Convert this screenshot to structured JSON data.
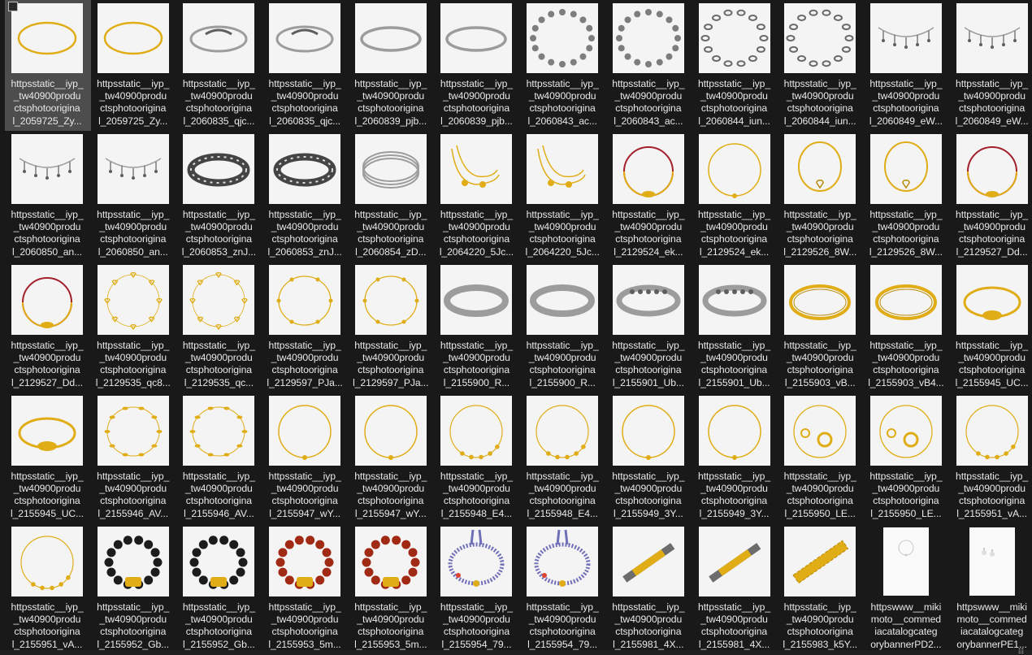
{
  "files": [
    {
      "caption": "httpsstatic__iyp_\n_tw40900produ\nctsphotoorigina\nl_2059725_Zy...",
      "kind": "gold-chain",
      "selected": true
    },
    {
      "caption": "httpsstatic__iyp_\n_tw40900produ\nctsphotoorigina\nl_2059725_Zy...",
      "kind": "gold-chain"
    },
    {
      "caption": "httpsstatic__iyp_\n_tw40900produ\nctsphotoorigina\nl_2060835_qjc...",
      "kind": "silver-bangle-wave"
    },
    {
      "caption": "httpsstatic__iyp_\n_tw40900produ\nctsphotoorigina\nl_2060835_qjc...",
      "kind": "silver-bangle-wave"
    },
    {
      "caption": "httpsstatic__iyp_\n_tw40900produ\nctsphotoorigina\nl_2060839_pjb...",
      "kind": "silver-bangle-plain"
    },
    {
      "caption": "httpsstatic__iyp_\n_tw40900produ\nctsphotoorigina\nl_2060839_pjb...",
      "kind": "silver-bangle-plain"
    },
    {
      "caption": "httpsstatic__iyp_\n_tw40900produ\nctsphotoorigina\nl_2060843_ac...",
      "kind": "silver-coin-chain"
    },
    {
      "caption": "httpsstatic__iyp_\n_tw40900produ\nctsphotoorigina\nl_2060843_ac...",
      "kind": "silver-coin-chain"
    },
    {
      "caption": "httpsstatic__iyp_\n_tw40900produ\nctsphotoorigina\nl_2060844_iun...",
      "kind": "silver-link-chain"
    },
    {
      "caption": "httpsstatic__iyp_\n_tw40900produ\nctsphotoorigina\nl_2060844_iun...",
      "kind": "silver-link-chain"
    },
    {
      "caption": "httpsstatic__iyp_\n_tw40900produ\nctsphotoorigina\nl_2060849_eW...",
      "kind": "silver-charm-anklet"
    },
    {
      "caption": "httpsstatic__iyp_\n_tw40900produ\nctsphotoorigina\nl_2060849_eW...",
      "kind": "silver-charm-anklet"
    },
    {
      "caption": "httpsstatic__iyp_\n_tw40900produ\nctsphotoorigina\nl_2060850_an...",
      "kind": "silver-charm-anklet"
    },
    {
      "caption": "httpsstatic__iyp_\n_tw40900produ\nctsphotoorigina\nl_2060850_an...",
      "kind": "silver-charm-anklet"
    },
    {
      "caption": "httpsstatic__iyp_\n_tw40900produ\nctsphotoorigina\nl_2060853_znJ...",
      "kind": "silver-cuff-dark"
    },
    {
      "caption": "httpsstatic__iyp_\n_tw40900produ\nctsphotoorigina\nl_2060853_znJ...",
      "kind": "silver-cuff-dark"
    },
    {
      "caption": "httpsstatic__iyp_\n_tw40900produ\nctsphotoorigina\nl_2060854_zD...",
      "kind": "silver-bangle-stack"
    },
    {
      "caption": "httpsstatic__iyp_\n_tw40900produ\nctsphotoorigina\nl_2064220_5Jc...",
      "kind": "gold-double-chain"
    },
    {
      "caption": "httpsstatic__iyp_\n_tw40900produ\nctsphotoorigina\nl_2064220_5Jc...",
      "kind": "gold-double-chain"
    },
    {
      "caption": "httpsstatic__iyp_\n_tw40900produ\nctsphotoorigina\nl_2129524_ek...",
      "kind": "gold-red-cord"
    },
    {
      "caption": "httpsstatic__iyp_\n_tw40900produ\nctsphotoorigina\nl_2129524_ek...",
      "kind": "gold-thin-chain"
    },
    {
      "caption": "httpsstatic__iyp_\n_tw40900produ\nctsphotoorigina\nl_2129526_8W...",
      "kind": "gold-heart"
    },
    {
      "caption": "httpsstatic__iyp_\n_tw40900produ\nctsphotoorigina\nl_2129526_8W...",
      "kind": "gold-heart"
    },
    {
      "caption": "httpsstatic__iyp_\n_tw40900produ\nctsphotoorigina\nl_2129527_Dd...",
      "kind": "gold-red-cord"
    },
    {
      "caption": "httpsstatic__iyp_\n_tw40900produ\nctsphotoorigina\nl_2129527_Dd...",
      "kind": "gold-red-cord"
    },
    {
      "caption": "httpsstatic__iyp_\n_tw40900produ\nctsphotoorigina\nl_2129535_qc8...",
      "kind": "gold-heart-chain"
    },
    {
      "caption": "httpsstatic__iyp_\n_tw40900produ\nctsphotoorigina\nl_2129535_qc...",
      "kind": "gold-heart-chain"
    },
    {
      "caption": "httpsstatic__iyp_\n_tw40900produ\nctsphotoorigina\nl_2129597_PJa...",
      "kind": "gold-flower-chain"
    },
    {
      "caption": "httpsstatic__iyp_\n_tw40900produ\nctsphotoorigina\nl_2129597_PJa...",
      "kind": "gold-flower-chain"
    },
    {
      "caption": "httpsstatic__iyp_\n_tw40900produ\nctsphotoorigina\nl_2155900_R...",
      "kind": "silver-bangle-thick"
    },
    {
      "caption": "httpsstatic__iyp_\n_tw40900produ\nctsphotoorigina\nl_2155900_R...",
      "kind": "silver-bangle-thick"
    },
    {
      "caption": "httpsstatic__iyp_\n_tw40900produ\nctsphotoorigina\nl_2155901_Ub...",
      "kind": "silver-bangle-heart"
    },
    {
      "caption": "httpsstatic__iyp_\n_tw40900produ\nctsphotoorigina\nl_2155901_Ub...",
      "kind": "silver-bangle-heart"
    },
    {
      "caption": "httpsstatic__iyp_\n_tw40900produ\nctsphotoorigina\nl_2155903_vB...",
      "kind": "gold-bangle"
    },
    {
      "caption": "httpsstatic__iyp_\n_tw40900produ\nctsphotoorigina\nl_2155903_vB4...",
      "kind": "gold-bangle"
    },
    {
      "caption": "httpsstatic__iyp_\n_tw40900produ\nctsphotoorigina\nl_2155945_UC...",
      "kind": "gold-pixiu-bangle"
    },
    {
      "caption": "httpsstatic__iyp_\n_tw40900produ\nctsphotoorigina\nl_2155945_UC...",
      "kind": "gold-pixiu-bangle"
    },
    {
      "caption": "httpsstatic__iyp_\n_tw40900produ\nctsphotoorigina\nl_2155946_AV...",
      "kind": "gold-leaf-chain"
    },
    {
      "caption": "httpsstatic__iyp_\n_tw40900produ\nctsphotoorigina\nl_2155946_AV...",
      "kind": "gold-leaf-chain"
    },
    {
      "caption": "httpsstatic__iyp_\n_tw40900produ\nctsphotoorigina\nl_2155947_wY...",
      "kind": "gold-thin-chain"
    },
    {
      "caption": "httpsstatic__iyp_\n_tw40900produ\nctsphotoorigina\nl_2155947_wY...",
      "kind": "gold-thin-chain"
    },
    {
      "caption": "httpsstatic__iyp_\n_tw40900produ\nctsphotoorigina\nl_2155948_E4...",
      "kind": "gold-bead-chain"
    },
    {
      "caption": "httpsstatic__iyp_\n_tw40900produ\nctsphotoorigina\nl_2155948_E4...",
      "kind": "gold-bead-chain"
    },
    {
      "caption": "httpsstatic__iyp_\n_tw40900produ\nctsphotoorigina\nl_2155949_3Y...",
      "kind": "gold-thin-chain"
    },
    {
      "caption": "httpsstatic__iyp_\n_tw40900produ\nctsphotoorigina\nl_2155949_3Y...",
      "kind": "gold-thin-chain"
    },
    {
      "caption": "httpsstatic__iyp_\n_tw40900produ\nctsphotoorigina\nl_2155950_LE...",
      "kind": "gold-coin-chain"
    },
    {
      "caption": "httpsstatic__iyp_\n_tw40900produ\nctsphotoorigina\nl_2155950_LE...",
      "kind": "gold-coin-chain"
    },
    {
      "caption": "httpsstatic__iyp_\n_tw40900produ\nctsphotoorigina\nl_2155951_vA...",
      "kind": "gold-bead-chain"
    },
    {
      "caption": "httpsstatic__iyp_\n_tw40900produ\nctsphotoorigina\nl_2155951_vA...",
      "kind": "gold-bead-chain"
    },
    {
      "caption": "httpsstatic__iyp_\n_tw40900produ\nctsphotoorigina\nl_2155952_Gb...",
      "kind": "black-bead"
    },
    {
      "caption": "httpsstatic__iyp_\n_tw40900produ\nctsphotoorigina\nl_2155952_Gb...",
      "kind": "black-bead"
    },
    {
      "caption": "httpsstatic__iyp_\n_tw40900produ\nctsphotoorigina\nl_2155953_5m...",
      "kind": "red-bead"
    },
    {
      "caption": "httpsstatic__iyp_\n_tw40900produ\nctsphotoorigina\nl_2155953_5m...",
      "kind": "red-bead"
    },
    {
      "caption": "httpsstatic__iyp_\n_tw40900produ\nctsphotoorigina\nl_2155954_79...",
      "kind": "woven-cord"
    },
    {
      "caption": "httpsstatic__iyp_\n_tw40900produ\nctsphotoorigina\nl_2155954_79...",
      "kind": "woven-cord"
    },
    {
      "caption": "httpsstatic__iyp_\n_tw40900produ\nctsphotoorigina\nl_2155981_4X...",
      "kind": "tie-clip"
    },
    {
      "caption": "httpsstatic__iyp_\n_tw40900produ\nctsphotoorigina\nl_2155981_4X...",
      "kind": "tie-clip"
    },
    {
      "caption": "httpsstatic__iyp_\n_tw40900produ\nctsphotoorigina\nl_2155983_k5Y...",
      "kind": "tie-clip-gold"
    },
    {
      "caption": "httpswww__miki\nmoto__commed\niacatalogcateg\norybannerPD2...",
      "kind": "banner-bracelet"
    },
    {
      "caption": "httpswww__miki\nmoto__commed\niacatalogcateg\norybannerPE1...",
      "kind": "banner-earrings"
    }
  ],
  "colors": {
    "background": "#191919",
    "caption": "#e8e8e8",
    "selected": "#4d4d4d",
    "gold": "#e2b21a",
    "silver": "#a8a8a8"
  }
}
